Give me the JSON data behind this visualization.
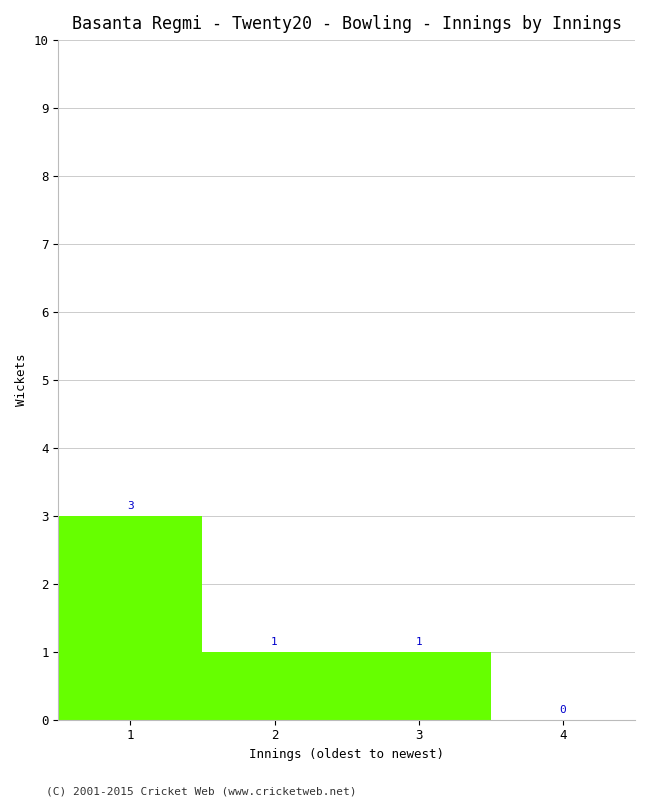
{
  "title": "Basanta Regmi - Twenty20 - Bowling - Innings by Innings",
  "xlabel": "Innings (oldest to newest)",
  "ylabel": "Wickets",
  "categories": [
    1,
    2,
    3,
    4
  ],
  "values": [
    3,
    1,
    1,
    0
  ],
  "bar_color": "#66ff00",
  "annotation_color": "#0000cc",
  "ylim": [
    0,
    10
  ],
  "yticks": [
    0,
    1,
    2,
    3,
    4,
    5,
    6,
    7,
    8,
    9,
    10
  ],
  "xticks": [
    1,
    2,
    3,
    4
  ],
  "background_color": "#ffffff",
  "plot_bg_color": "#ffffff",
  "grid_color": "#cccccc",
  "footnote": "(C) 2001-2015 Cricket Web (www.cricketweb.net)",
  "title_fontsize": 12,
  "label_fontsize": 9,
  "annotation_fontsize": 8,
  "footnote_fontsize": 8,
  "xlim_left": 0.5,
  "xlim_right": 4.5
}
